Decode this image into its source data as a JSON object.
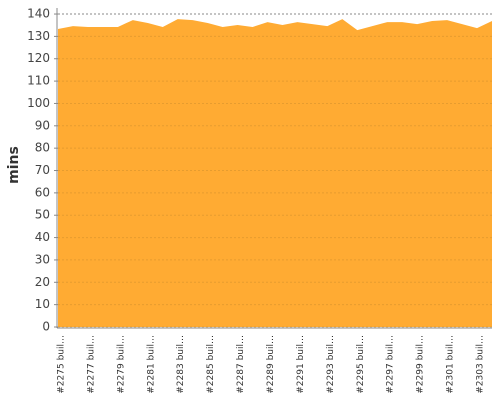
{
  "chart_data": {
    "type": "area",
    "y_label": "mins",
    "color": "#ffab33",
    "categories": [
      "#2275 buil…",
      null,
      "#2277 buil…",
      null,
      "#2279 buil…",
      null,
      "#2281 buil…",
      null,
      "#2283 buil…",
      null,
      "#2285 buil…",
      null,
      "#2287 buil…",
      null,
      "#2289 buil…",
      null,
      "#2291 buil…",
      null,
      "#2293 buil…",
      null,
      "#2295 buil…",
      null,
      "#2297 buil…",
      null,
      "#2299 buil…",
      null,
      "#2301 buil…",
      null,
      "#2303 buil…",
      null
    ],
    "values": [
      133.3,
      134.6,
      134.2,
      134.2,
      134.2,
      137.3,
      136,
      134.2,
      137.7,
      137.3,
      136,
      134.2,
      135.1,
      134.2,
      136.4,
      135.1,
      136.4,
      135.5,
      134.6,
      137.7,
      132.8,
      134.6,
      136.4,
      136.4,
      135.5,
      136.9,
      137.3,
      135.5,
      133.7,
      136.9
    ],
    "ylim": [
      0,
      142.7
    ],
    "yticks": [
      0,
      10,
      20,
      30,
      40,
      50,
      60,
      70,
      80,
      90,
      100,
      110,
      120,
      130,
      140
    ],
    "grid": true
  }
}
